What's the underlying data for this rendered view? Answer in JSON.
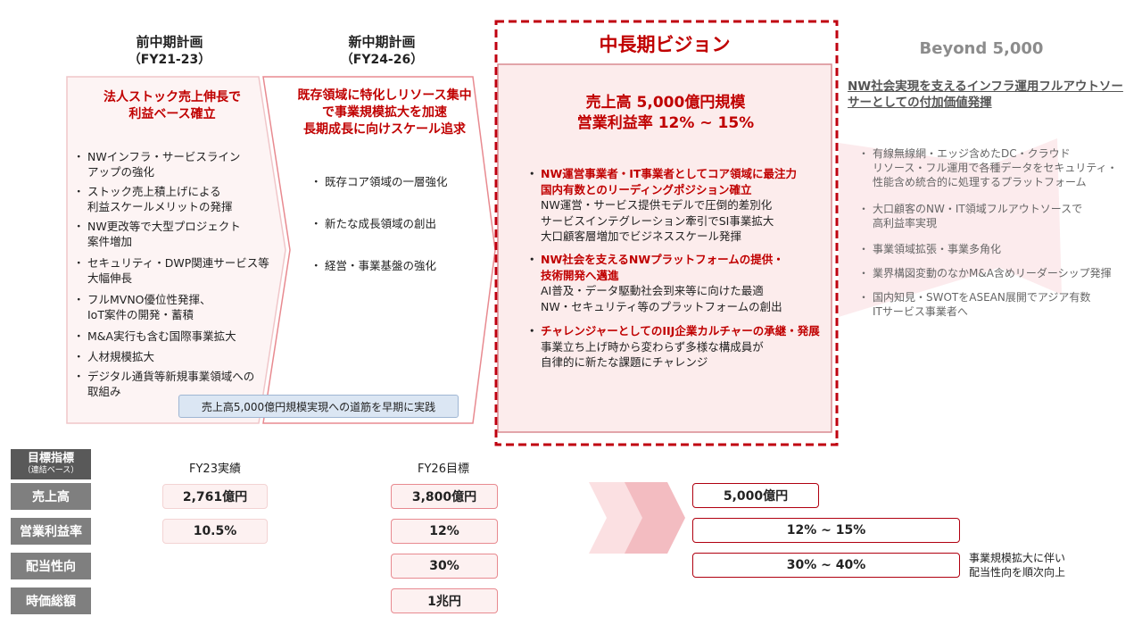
{
  "columns": {
    "prev": {
      "title": "前中期計画",
      "period": "（FY21-23）"
    },
    "next": {
      "title": "新中期計画",
      "period": "（FY24-26）"
    },
    "vision": {
      "title": "中長期ビジョン"
    },
    "beyond": {
      "title": "Beyond 5,000"
    }
  },
  "prev_plan": {
    "heading": [
      "法人ストック売上伸長で",
      "利益ベース確立"
    ],
    "bullets": [
      [
        "NWインフラ・サービスライン",
        "アップの強化"
      ],
      [
        "ストック売上積上げによる",
        "利益スケールメリットの発揮"
      ],
      [
        "NW更改等で大型プロジェクト",
        "案件増加"
      ],
      [
        "セキュリティ・DWP関連サービス等",
        "大幅伸長"
      ],
      [
        "フルMVNO優位性発揮、",
        "IoT案件の開発・蓄積"
      ],
      [
        "M&A実行も含む国際事業拡大"
      ],
      [
        "人材規模拡大"
      ],
      [
        "デジタル通貨等新規事業領域への",
        "取組み"
      ]
    ],
    "note": "売上高5,000億円規模実現への道筋を早期に実践"
  },
  "new_plan": {
    "heading": [
      "既存領域に特化しリソース集中",
      "で事業規模拡大を加速",
      "長期成長に向けスケール追求"
    ],
    "bullets": [
      "既存コア領域の一層強化",
      "新たな成長領域の創出",
      "経営・事業基盤の強化"
    ]
  },
  "vision": {
    "headline1": "売上高 5,000億円規模",
    "headline2": "営業利益率 12% ~ 15%",
    "items": [
      {
        "title": [
          "NW運営事業者・IT事業者としてコア領域に最注力",
          "国内有数とのリーディングポジション確立"
        ],
        "body": [
          "NW運営・サービス提供モデルで圧倒的差別化",
          "サービスインテグレーション牽引でSI事業拡大",
          "大口顧客層増加でビジネススケール発揮"
        ]
      },
      {
        "title": [
          "NW社会を支えるNWプラットフォームの提供・",
          "技術開発へ邁進"
        ],
        "body": [
          "AI普及・データ駆動社会到来等に向けた最適",
          "NW・セキュリティ等のプラットフォームの創出"
        ]
      },
      {
        "title": [
          "チャレンジャーとしてのIIJ企業カルチャーの承継・発展"
        ],
        "body": [
          "事業立ち上げ時から変わらず多様な構成員が",
          "自律的に新たな課題にチャレンジ"
        ]
      }
    ]
  },
  "beyond": {
    "heading": [
      "NW社会実現を支えるインフラ運用フルアウトソー",
      "サーとしての付加価値発揮"
    ],
    "bullets": [
      [
        "有線無線網・エッジ含めたDC・クラウド",
        "リソース・フル運用で各種データをセキュリティ・",
        "性能含め統合的に処理するプラットフォーム"
      ],
      [
        "大口顧客のNW・IT領域フルアウトソースで",
        "高利益率実現"
      ],
      [
        "事業領域拡張・事業多角化"
      ],
      [
        "業界構図変動のなかM&A含めリーダーシップ発揮"
      ],
      [
        "国内知見・SWOTをASEAN展開でアジア有数",
        "ITサービス事業者へ"
      ]
    ]
  },
  "metrics": {
    "header_title": "目標指標",
    "header_sub": "（連結ベース）",
    "col_fy23": "FY23実績",
    "col_fy26": "FY26目標",
    "rows": [
      {
        "label": "売上高",
        "fy23": "2,761億円",
        "fy26": "3,800億円",
        "vision": "5,000億円"
      },
      {
        "label": "営業利益率",
        "fy23": "10.5%",
        "fy26": "12%",
        "vision": "12% ~ 15%"
      },
      {
        "label": "配当性向",
        "fy23": "",
        "fy26": "30%",
        "vision": "30% ~ 40%"
      },
      {
        "label": "時価総額",
        "fy23": "",
        "fy26": "1兆円",
        "vision": ""
      }
    ],
    "dividend_note": [
      "事業規模拡大に伴い",
      "配当性向を順次向上"
    ]
  },
  "colors": {
    "accent_red": "#c00000",
    "pink_fill": "#fdf1f1",
    "pink_border": "#e88a90",
    "label_gray": "#7f7f7f"
  }
}
